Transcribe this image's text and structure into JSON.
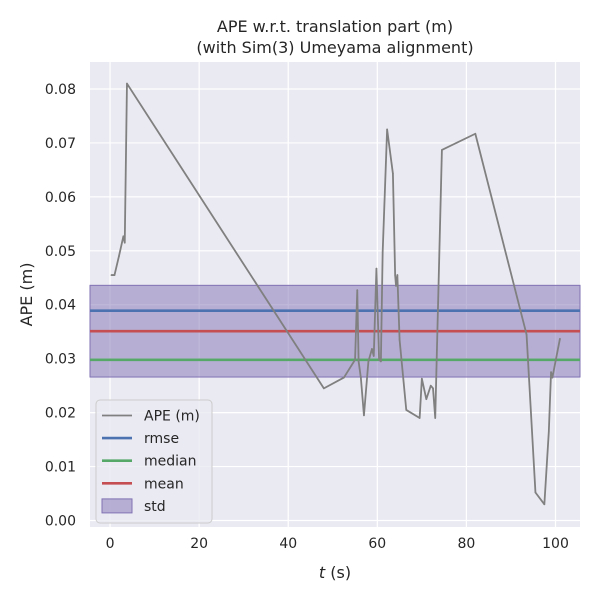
{
  "chart_data": {
    "type": "line",
    "title_lines": [
      "APE w.r.t. translation part (m)",
      "(with Sim(3) Umeyama alignment)"
    ],
    "xlabel_prefix": "t",
    "xlabel_suffix": " (s)",
    "ylabel": "APE (m)",
    "xlim": [
      -4.5,
      105.5
    ],
    "ylim": [
      -0.0012,
      0.085
    ],
    "xticks": [
      0,
      20,
      40,
      60,
      80,
      100
    ],
    "xtick_labels": [
      "0",
      "20",
      "40",
      "60",
      "80",
      "100"
    ],
    "yticks": [
      0.0,
      0.01,
      0.02,
      0.03,
      0.04,
      0.05,
      0.06,
      0.07,
      0.08
    ],
    "ytick_labels": [
      "0.00",
      "0.01",
      "0.02",
      "0.03",
      "0.04",
      "0.05",
      "0.06",
      "0.07",
      "0.08"
    ],
    "grid": true,
    "legend_position": "lower-left",
    "series": [
      {
        "name": "APE (m)",
        "color": "#808080",
        "x": [
          0.3,
          1.0,
          2.0,
          3.0,
          3.3,
          3.8,
          48.0,
          52.5,
          55.0,
          55.5,
          55.8,
          56.3,
          57.0,
          58.0,
          58.8,
          59.2,
          59.8,
          60.4,
          60.8,
          61.2,
          62.2,
          63.5,
          64.0,
          64.2,
          64.5,
          65.0,
          66.5,
          69.5,
          70.0,
          71.0,
          72.0,
          72.5,
          73.0,
          74.5,
          82.0,
          93.5,
          95.5,
          97.5,
          98.5,
          99.0,
          99.3,
          101.0
        ],
        "y": [
          0.0455,
          0.0455,
          0.049,
          0.0527,
          0.0515,
          0.081,
          0.0245,
          0.0265,
          0.0298,
          0.0427,
          0.0295,
          0.0265,
          0.0195,
          0.0295,
          0.0318,
          0.0305,
          0.0467,
          0.0298,
          0.0295,
          0.0497,
          0.0725,
          0.0643,
          0.0455,
          0.0435,
          0.0455,
          0.0335,
          0.0205,
          0.019,
          0.0263,
          0.0225,
          0.025,
          0.0245,
          0.019,
          0.0687,
          0.0717,
          0.0345,
          0.0052,
          0.003,
          0.0165,
          0.0275,
          0.0265,
          0.0337
        ]
      }
    ],
    "reference_lines": [
      {
        "name": "rmse",
        "value": 0.0389,
        "color": "#4c72b0"
      },
      {
        "name": "median",
        "value": 0.0298,
        "color": "#55a868"
      },
      {
        "name": "mean",
        "value": 0.0351,
        "color": "#c44e52"
      }
    ],
    "std_band": {
      "name": "std",
      "low": 0.0266,
      "high": 0.0436,
      "color": "#8172b3"
    },
    "legend": [
      {
        "name": "APE (m)",
        "kind": "line",
        "color": "#808080"
      },
      {
        "name": "rmse",
        "kind": "line",
        "color": "#4c72b0"
      },
      {
        "name": "median",
        "kind": "line",
        "color": "#55a868"
      },
      {
        "name": "mean",
        "kind": "line",
        "color": "#c44e52"
      },
      {
        "name": "std",
        "kind": "patch",
        "color": "#8172b3"
      }
    ],
    "colors": {
      "plot_background": "#eaeaf2",
      "grid": "#ffffff",
      "text": "#262626"
    }
  }
}
